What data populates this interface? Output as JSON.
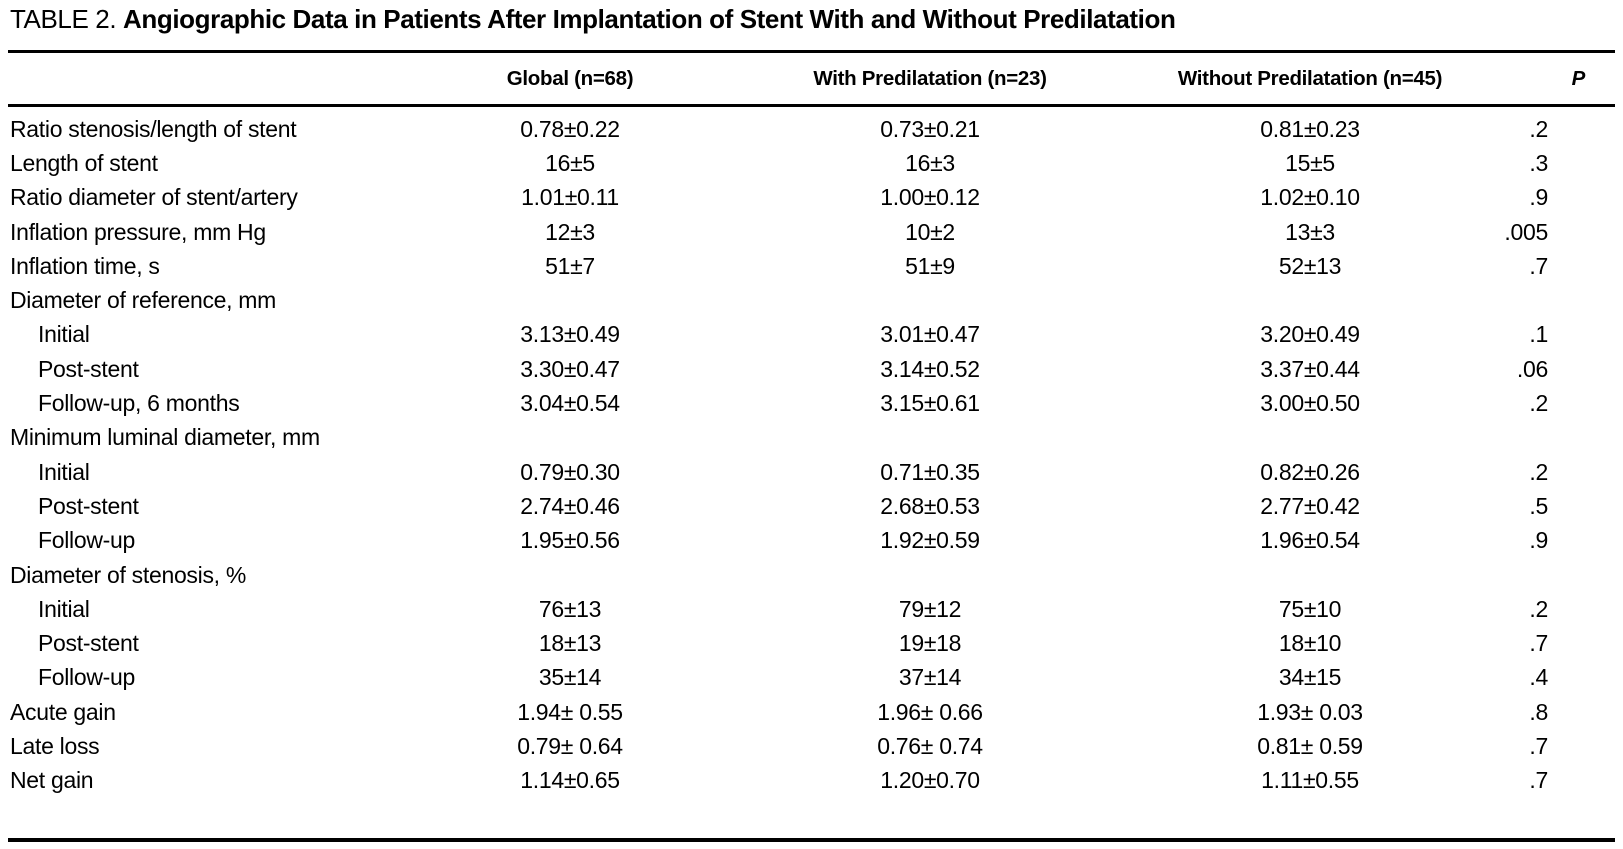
{
  "title": {
    "prefix": "TABLE 2.",
    "text": "Angiographic Data in Patients After Implantation of Stent With and Without Predilatation"
  },
  "table": {
    "columns": [
      "",
      "Global (n=68)",
      "With Predilatation (n=23)",
      "Without Predilatation (n=45)",
      "P"
    ],
    "rows": [
      {
        "label": "Ratio stenosis/length of stent",
        "indent": false,
        "global": "0.78±0.22",
        "with_predilatation": "0.73±0.21",
        "without_predilatation": "0.81±0.23",
        "p": ".2"
      },
      {
        "label": "Length of stent",
        "indent": false,
        "global": "16±5",
        "with_predilatation": "16±3",
        "without_predilatation": "15±5",
        "p": ".3"
      },
      {
        "label": "Ratio diameter of stent/artery",
        "indent": false,
        "global": "1.01±0.11",
        "with_predilatation": "1.00±0.12",
        "without_predilatation": "1.02±0.10",
        "p": ".9"
      },
      {
        "label": "Inflation pressure, mm Hg",
        "indent": false,
        "global": "12±3",
        "with_predilatation": "10±2",
        "without_predilatation": "13±3",
        "p": ".005"
      },
      {
        "label": "Inflation time, s",
        "indent": false,
        "global": "51±7",
        "with_predilatation": "51±9",
        "without_predilatation": "52±13",
        "p": ".7"
      },
      {
        "label": "Diameter of reference, mm",
        "indent": false,
        "global": "",
        "with_predilatation": "",
        "without_predilatation": "",
        "p": ""
      },
      {
        "label": "Initial",
        "indent": true,
        "global": "3.13±0.49",
        "with_predilatation": "3.01±0.47",
        "without_predilatation": "3.20±0.49",
        "p": ".1"
      },
      {
        "label": "Post-stent",
        "indent": true,
        "global": "3.30±0.47",
        "with_predilatation": "3.14±0.52",
        "without_predilatation": "3.37±0.44",
        "p": ".06"
      },
      {
        "label": "Follow-up, 6 months",
        "indent": true,
        "global": "3.04±0.54",
        "with_predilatation": "3.15±0.61",
        "without_predilatation": "3.00±0.50",
        "p": ".2"
      },
      {
        "label": "Minimum luminal diameter, mm",
        "indent": false,
        "global": "",
        "with_predilatation": "",
        "without_predilatation": "",
        "p": ""
      },
      {
        "label": "Initial",
        "indent": true,
        "global": "0.79±0.30",
        "with_predilatation": "0.71±0.35",
        "without_predilatation": "0.82±0.26",
        "p": ".2"
      },
      {
        "label": "Post-stent",
        "indent": true,
        "global": "2.74±0.46",
        "with_predilatation": "2.68±0.53",
        "without_predilatation": "2.77±0.42",
        "p": ".5"
      },
      {
        "label": "Follow-up",
        "indent": true,
        "global": "1.95±0.56",
        "with_predilatation": "1.92±0.59",
        "without_predilatation": "1.96±0.54",
        "p": ".9"
      },
      {
        "label": "Diameter of stenosis, %",
        "indent": false,
        "global": "",
        "with_predilatation": "",
        "without_predilatation": "",
        "p": ""
      },
      {
        "label": "Initial",
        "indent": true,
        "global": "76±13",
        "with_predilatation": "79±12",
        "without_predilatation": "75±10",
        "p": ".2"
      },
      {
        "label": "Post-stent",
        "indent": true,
        "global": "18±13",
        "with_predilatation": "19±18",
        "without_predilatation": "18±10",
        "p": ".7"
      },
      {
        "label": "Follow-up",
        "indent": true,
        "global": "35±14",
        "with_predilatation": "37±14",
        "without_predilatation": "34±15",
        "p": ".4"
      },
      {
        "label": "Acute gain",
        "indent": false,
        "global": "1.94± 0.55",
        "with_predilatation": "1.96± 0.66",
        "without_predilatation": "1.93± 0.03",
        "p": ".8"
      },
      {
        "label": "Late loss",
        "indent": false,
        "global": "0.79± 0.64",
        "with_predilatation": "0.76± 0.74",
        "without_predilatation": "0.81± 0.59",
        "p": ".7"
      },
      {
        "label": "Net gain",
        "indent": false,
        "global": "1.14±0.65",
        "with_predilatation": "1.20±0.70",
        "without_predilatation": "1.11±0.55",
        "p": ".7"
      }
    ]
  }
}
